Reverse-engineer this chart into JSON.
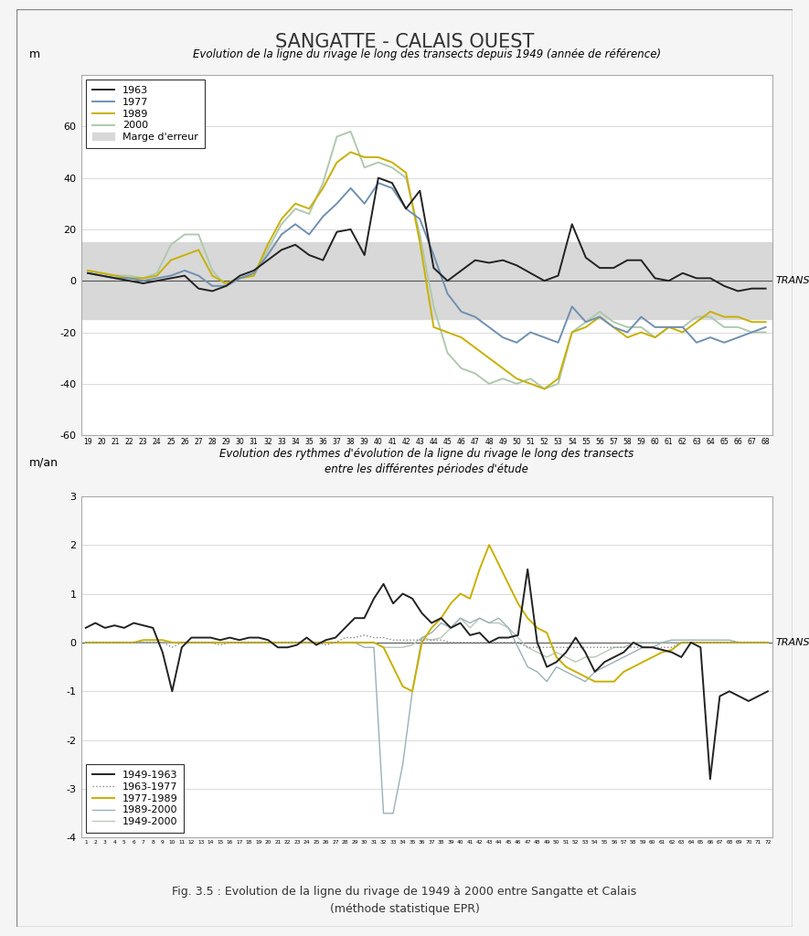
{
  "title": "SANGATTE - CALAIS OUEST",
  "fig_caption": "Fig. 3.5 : Evolution de la ligne du rivage de 1949 à 2000 entre Sangatte et Calais\n(méthode statistique EPR)",
  "plot1": {
    "title": "Evolution de la ligne du rivage le long des transects depuis 1949 (année de référence)",
    "ylabel": "m",
    "transect_label": "TRANSECT",
    "ylim": [
      -60,
      80
    ],
    "yticks": [
      -60,
      -40,
      -20,
      0,
      20,
      40,
      60,
      80
    ],
    "error_band": [
      -15,
      15
    ],
    "error_color": "#d8d8d8",
    "transects": [
      19,
      20,
      21,
      22,
      23,
      24,
      25,
      26,
      27,
      28,
      29,
      30,
      31,
      32,
      33,
      34,
      35,
      36,
      37,
      38,
      39,
      40,
      41,
      42,
      43,
      44,
      45,
      46,
      47,
      48,
      49,
      50,
      51,
      52,
      53,
      54,
      55,
      56,
      57,
      58,
      59,
      60,
      61,
      62,
      63,
      64,
      65,
      66,
      67,
      68
    ],
    "series": {
      "1963": {
        "color": "#222222",
        "linewidth": 1.4,
        "values": [
          3,
          2,
          1,
          0,
          -1,
          0,
          1,
          2,
          -3,
          -4,
          -2,
          2,
          4,
          8,
          12,
          14,
          10,
          8,
          19,
          20,
          10,
          40,
          38,
          28,
          35,
          5,
          0,
          4,
          8,
          7,
          8,
          6,
          3,
          0,
          2,
          22,
          9,
          5,
          5,
          8,
          8,
          1,
          0,
          3,
          1,
          1,
          -2,
          -4,
          -3,
          -3
        ]
      },
      "1977": {
        "color": "#7090b0",
        "linewidth": 1.4,
        "values": [
          3,
          2,
          1,
          1,
          0,
          1,
          2,
          4,
          2,
          -2,
          -2,
          1,
          3,
          10,
          18,
          22,
          18,
          25,
          30,
          36,
          30,
          38,
          36,
          28,
          24,
          10,
          -5,
          -12,
          -14,
          -18,
          -22,
          -24,
          -20,
          -22,
          -24,
          -10,
          -16,
          -14,
          -18,
          -20,
          -14,
          -18,
          -18,
          -18,
          -24,
          -22,
          -24,
          -22,
          -20,
          -18
        ]
      },
      "1989": {
        "color": "#c8b000",
        "linewidth": 1.4,
        "values": [
          4,
          3,
          2,
          1,
          1,
          2,
          8,
          10,
          12,
          2,
          -1,
          1,
          2,
          14,
          24,
          30,
          28,
          36,
          46,
          50,
          48,
          48,
          46,
          42,
          15,
          -18,
          -20,
          -22,
          -26,
          -30,
          -34,
          -38,
          -40,
          -42,
          -38,
          -20,
          -18,
          -14,
          -18,
          -22,
          -20,
          -22,
          -18,
          -20,
          -16,
          -12,
          -14,
          -14,
          -16,
          -16
        ]
      },
      "2000": {
        "color": "#b0c8b0",
        "linewidth": 1.4,
        "values": [
          4,
          3,
          2,
          2,
          1,
          3,
          14,
          18,
          18,
          4,
          -2,
          1,
          2,
          12,
          22,
          28,
          26,
          38,
          56,
          58,
          44,
          46,
          44,
          40,
          18,
          -10,
          -28,
          -34,
          -36,
          -40,
          -38,
          -40,
          -38,
          -42,
          -40,
          -20,
          -16,
          -12,
          -16,
          -18,
          -18,
          -22,
          -18,
          -18,
          -14,
          -14,
          -18,
          -18,
          -20,
          -20
        ]
      }
    }
  },
  "plot2": {
    "title": "Evolution des rythmes d'évolution de la ligne du rivage le long des transects\nentre les différentes périodes d'étude",
    "ylabel": "m/an",
    "transect_label": "TRANSECT",
    "ylim": [
      -4,
      3
    ],
    "yticks": [
      -4,
      -3,
      -2,
      -1,
      0,
      1,
      2,
      3
    ],
    "transects": [
      1,
      2,
      3,
      4,
      5,
      6,
      7,
      8,
      9,
      10,
      11,
      12,
      13,
      14,
      15,
      16,
      17,
      18,
      19,
      20,
      21,
      22,
      23,
      24,
      25,
      26,
      27,
      28,
      29,
      30,
      31,
      32,
      33,
      34,
      35,
      36,
      37,
      38,
      39,
      40,
      41,
      42,
      43,
      44,
      45,
      46,
      47,
      48,
      49,
      50,
      51,
      52,
      53,
      54,
      55,
      56,
      57,
      58,
      59,
      60,
      61,
      62,
      63,
      64,
      65,
      66,
      67,
      68,
      69,
      70,
      71,
      72
    ],
    "series": {
      "1949-1963": {
        "color": "#222222",
        "linewidth": 1.4,
        "linestyle": "solid",
        "values": [
          0.3,
          0.4,
          0.3,
          0.35,
          0.3,
          0.4,
          0.35,
          0.3,
          -0.2,
          -1.0,
          -0.1,
          0.1,
          0.1,
          0.1,
          0.05,
          0.1,
          0.05,
          0.1,
          0.1,
          0.05,
          -0.1,
          -0.1,
          -0.05,
          0.1,
          -0.05,
          0.05,
          0.1,
          0.3,
          0.5,
          0.5,
          0.9,
          1.2,
          0.8,
          1.0,
          0.9,
          0.6,
          0.4,
          0.5,
          0.3,
          0.4,
          0.15,
          0.2,
          0.0,
          0.1,
          0.1,
          0.15,
          1.5,
          0.0,
          -0.5,
          -0.4,
          -0.2,
          0.1,
          -0.2,
          -0.6,
          -0.4,
          -0.3,
          -0.2,
          0.0,
          -0.1,
          -0.1,
          -0.15,
          -0.2,
          -0.3,
          0.0,
          -0.1,
          -2.8,
          -1.1,
          -1.0,
          -1.1,
          -1.2,
          -1.1,
          -1.0
        ]
      },
      "1963-1977": {
        "color": "#888888",
        "linewidth": 1.0,
        "linestyle": "dotted",
        "values": [
          0.0,
          0.0,
          0.0,
          0.0,
          0.0,
          0.0,
          0.0,
          0.0,
          0.0,
          -0.1,
          0.0,
          0.0,
          0.0,
          0.0,
          -0.05,
          0.0,
          0.0,
          0.0,
          0.0,
          0.0,
          0.0,
          0.0,
          0.0,
          0.0,
          0.0,
          -0.05,
          0.0,
          0.1,
          0.1,
          0.15,
          0.1,
          0.1,
          0.05,
          0.05,
          0.05,
          0.05,
          0.05,
          0.05,
          0.0,
          0.0,
          0.0,
          0.0,
          0.0,
          0.0,
          0.0,
          0.0,
          -0.1,
          -0.1,
          -0.1,
          -0.1,
          -0.1,
          -0.1,
          -0.1,
          -0.1,
          -0.1,
          -0.1,
          -0.1,
          -0.1,
          -0.1,
          -0.1,
          -0.1,
          -0.1,
          0.0,
          0.0,
          0.0,
          0.0,
          0.0,
          0.0,
          0.0,
          0.0,
          0.0,
          0.0
        ]
      },
      "1977-1989": {
        "color": "#c8b000",
        "linewidth": 1.4,
        "linestyle": "solid",
        "values": [
          0.0,
          0.0,
          0.0,
          0.0,
          0.0,
          0.0,
          0.05,
          0.05,
          0.05,
          0.0,
          0.0,
          0.0,
          0.0,
          0.0,
          0.0,
          0.0,
          0.0,
          0.0,
          0.0,
          0.0,
          0.0,
          0.0,
          0.0,
          0.0,
          0.0,
          0.0,
          0.0,
          0.0,
          0.0,
          0.0,
          0.0,
          -0.1,
          -0.5,
          -0.9,
          -1.0,
          0.0,
          0.3,
          0.5,
          0.8,
          1.0,
          0.9,
          1.5,
          2.0,
          1.6,
          1.2,
          0.8,
          0.5,
          0.3,
          0.2,
          -0.3,
          -0.5,
          -0.6,
          -0.7,
          -0.8,
          -0.8,
          -0.8,
          -0.6,
          -0.5,
          -0.4,
          -0.3,
          -0.2,
          -0.15,
          0.0,
          0.0,
          0.0,
          0.0,
          0.0,
          0.0,
          0.0,
          0.0,
          0.0,
          0.0
        ]
      },
      "1989-2000": {
        "color": "#9ab0b8",
        "linewidth": 1.0,
        "linestyle": "solid",
        "values": [
          0.0,
          0.0,
          0.0,
          0.0,
          0.0,
          0.0,
          0.0,
          0.0,
          0.0,
          0.0,
          0.0,
          0.0,
          0.0,
          0.0,
          0.0,
          0.0,
          0.0,
          0.0,
          0.0,
          0.0,
          0.0,
          0.0,
          0.0,
          0.0,
          0.0,
          0.0,
          0.0,
          0.0,
          0.0,
          -0.1,
          -0.1,
          -3.5,
          -3.5,
          -2.5,
          -1.0,
          0.1,
          0.2,
          0.4,
          0.3,
          0.5,
          0.4,
          0.5,
          0.4,
          0.5,
          0.3,
          -0.1,
          -0.5,
          -0.6,
          -0.8,
          -0.5,
          -0.6,
          -0.7,
          -0.8,
          -0.6,
          -0.5,
          -0.4,
          -0.3,
          -0.2,
          -0.1,
          -0.1,
          0.0,
          0.05,
          0.05,
          0.05,
          0.05,
          0.05,
          0.05,
          0.05,
          0.0,
          0.0,
          0.0,
          0.0
        ]
      },
      "1949-2000": {
        "color": "#b8c8b8",
        "linewidth": 1.0,
        "linestyle": "solid",
        "values": [
          0.0,
          0.0,
          0.0,
          0.0,
          0.0,
          0.0,
          0.0,
          0.0,
          0.0,
          0.0,
          0.0,
          0.0,
          0.0,
          0.0,
          0.0,
          0.0,
          0.0,
          0.0,
          0.0,
          0.0,
          0.0,
          0.0,
          0.0,
          0.0,
          0.0,
          0.0,
          0.0,
          0.0,
          0.0,
          0.0,
          0.0,
          -0.1,
          -0.1,
          -0.1,
          -0.05,
          0.1,
          0.05,
          0.1,
          0.3,
          0.5,
          0.3,
          0.5,
          0.4,
          0.4,
          0.3,
          0.1,
          -0.1,
          -0.2,
          -0.3,
          -0.2,
          -0.3,
          -0.4,
          -0.3,
          -0.3,
          -0.2,
          -0.1,
          -0.1,
          0.0,
          0.0,
          0.0,
          0.0,
          0.0,
          0.0,
          0.0,
          0.0,
          0.0,
          0.0,
          0.0,
          0.0,
          0.0,
          0.0,
          0.0
        ]
      }
    }
  },
  "background_color": "#f5f5f5",
  "plot_bg_color": "#ffffff",
  "border_color": "#aaaaaa",
  "outer_border_color": "#888888"
}
